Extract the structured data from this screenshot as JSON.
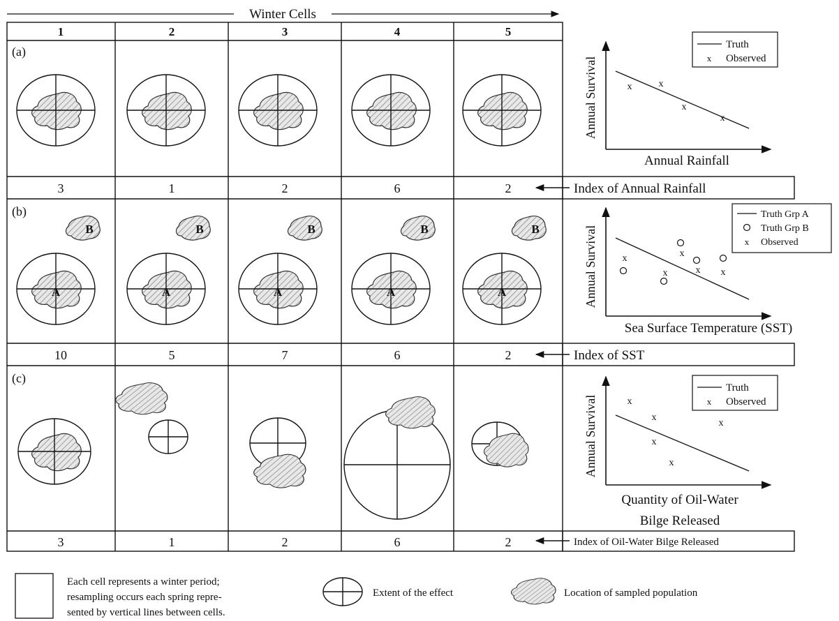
{
  "title": "Winter Cells",
  "columns": [
    "1",
    "2",
    "3",
    "4",
    "5"
  ],
  "rows": [
    {
      "label": "(a)",
      "index_label": "Index of Annual Rainfall",
      "index_values": [
        "3",
        "1",
        "2",
        "6",
        "2"
      ],
      "population_labels": [
        "",
        "",
        "",
        "",
        ""
      ]
    },
    {
      "label": "(b)",
      "index_label": "Index of SST",
      "index_values": [
        "10",
        "5",
        "7",
        "6",
        "2"
      ],
      "population_labels": [
        "A",
        "B"
      ]
    },
    {
      "label": "(c)",
      "index_label": "Index of Oil-Water Bilge Released",
      "index_values": [
        "3",
        "1",
        "2",
        "6",
        "2"
      ]
    }
  ],
  "plots": [
    {
      "ylabel": "Annual Survival",
      "xlabel": "Annual Rainfall",
      "legend": [
        {
          "symbol": "line",
          "label": "Truth"
        },
        {
          "symbol": "x",
          "label": "Observed"
        }
      ]
    },
    {
      "ylabel": "Annual Survival",
      "xlabel": "Sea Surface Temperature (SST)",
      "legend": [
        {
          "symbol": "line",
          "label": "Truth Grp A"
        },
        {
          "symbol": "o",
          "label": "Truth Grp B"
        },
        {
          "symbol": "x",
          "label": "Observed"
        }
      ]
    },
    {
      "ylabel": "Annual Survival",
      "xlabel_line1": "Quantity of Oil-Water",
      "xlabel_line2": "Bilge Released",
      "legend": [
        {
          "symbol": "line",
          "label": "Truth"
        },
        {
          "symbol": "x",
          "label": "Observed"
        }
      ]
    }
  ],
  "key": {
    "cell_line1": "Each cell represents a winter period;",
    "cell_line2": "resampling occurs each spring repre-",
    "cell_line3": "sented by vertical lines between cells.",
    "effect": "Extent of the effect",
    "population": "Location of sampled population"
  }
}
